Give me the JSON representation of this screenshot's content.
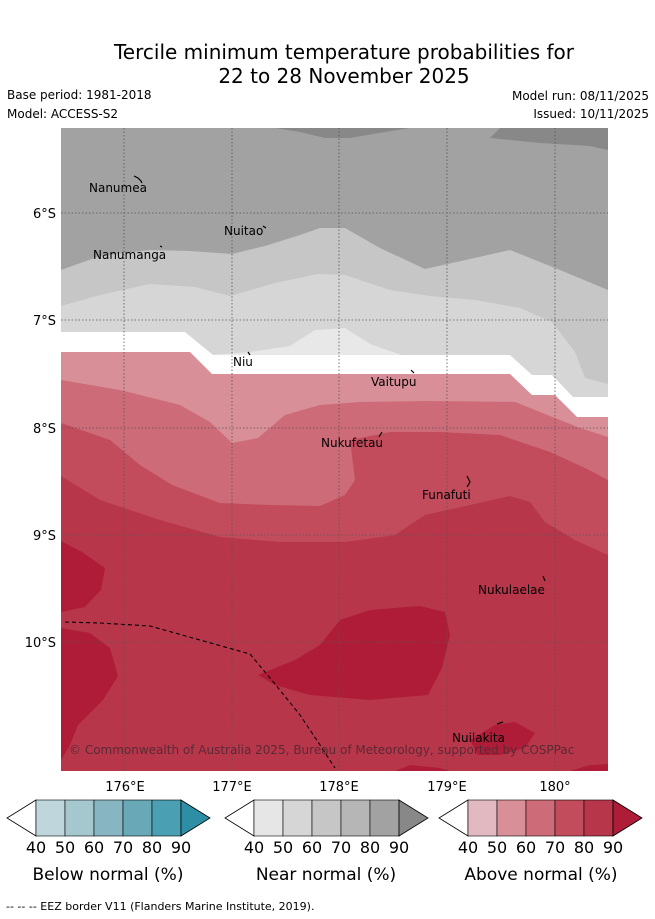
{
  "title": {
    "line1": "Tercile minimum temperature probabilities for",
    "line2": "22 to 28 November 2025"
  },
  "meta": {
    "base_period": "Base period: 1981-2018",
    "model": "Model: ACCESS-S2",
    "model_run": "Model run: 08/11/2025",
    "issued": "Issued: 10/11/2025"
  },
  "map": {
    "places": [
      "Nanumea",
      "Nuitao",
      "Nanumanga",
      "Niu",
      "Vaitupu",
      "Nukufetau",
      "Funafuti",
      "Nukulaelae",
      "Nuilakita"
    ],
    "lat_labels": [
      "6°S",
      "7°S",
      "8°S",
      "9°S",
      "10°S"
    ],
    "lon_labels": [
      "176°E",
      "177°E",
      "178°E",
      "179°E",
      "180°"
    ],
    "copyright": "© Commonwealth of Australia 2025, Bureau of Meteorology, supported by COSPPac",
    "colors": {
      "near_dark": "#888888",
      "near_mid": "#a2a2a2",
      "near_light": "#c6c6c6",
      "near_lighter": "#d6d6d6",
      "near_lightest": "#e8e8e8",
      "above_40": "#e2b9c0",
      "above_50": "#d88f98",
      "above_60": "#cd6b78",
      "above_70": "#c24c5c",
      "above_80": "#b8364a",
      "above_90": "#ae1c38"
    }
  },
  "colorbars": {
    "ticks": [
      "40",
      "50",
      "60",
      "70",
      "80",
      "90"
    ],
    "below": {
      "label": "Below normal (%)",
      "colors": [
        "#ffffff",
        "#bed6dc",
        "#a5c8cf",
        "#87b6c2",
        "#68a8b7",
        "#4aa0b2",
        "#2e8ea6"
      ]
    },
    "near": {
      "label": "Near normal (%)",
      "colors": [
        "#ffffff",
        "#e6e6e6",
        "#d6d6d6",
        "#c6c6c6",
        "#b6b6b6",
        "#a2a2a2",
        "#888888"
      ]
    },
    "above": {
      "label": "Above normal (%)",
      "colors": [
        "#ffffff",
        "#e2b9c0",
        "#d88f98",
        "#cd6b78",
        "#c24c5c",
        "#b8364a",
        "#ae1c38"
      ]
    }
  },
  "footnote": "-- -- -- EEZ border V11 (Flanders Marine Institute, 2019)."
}
